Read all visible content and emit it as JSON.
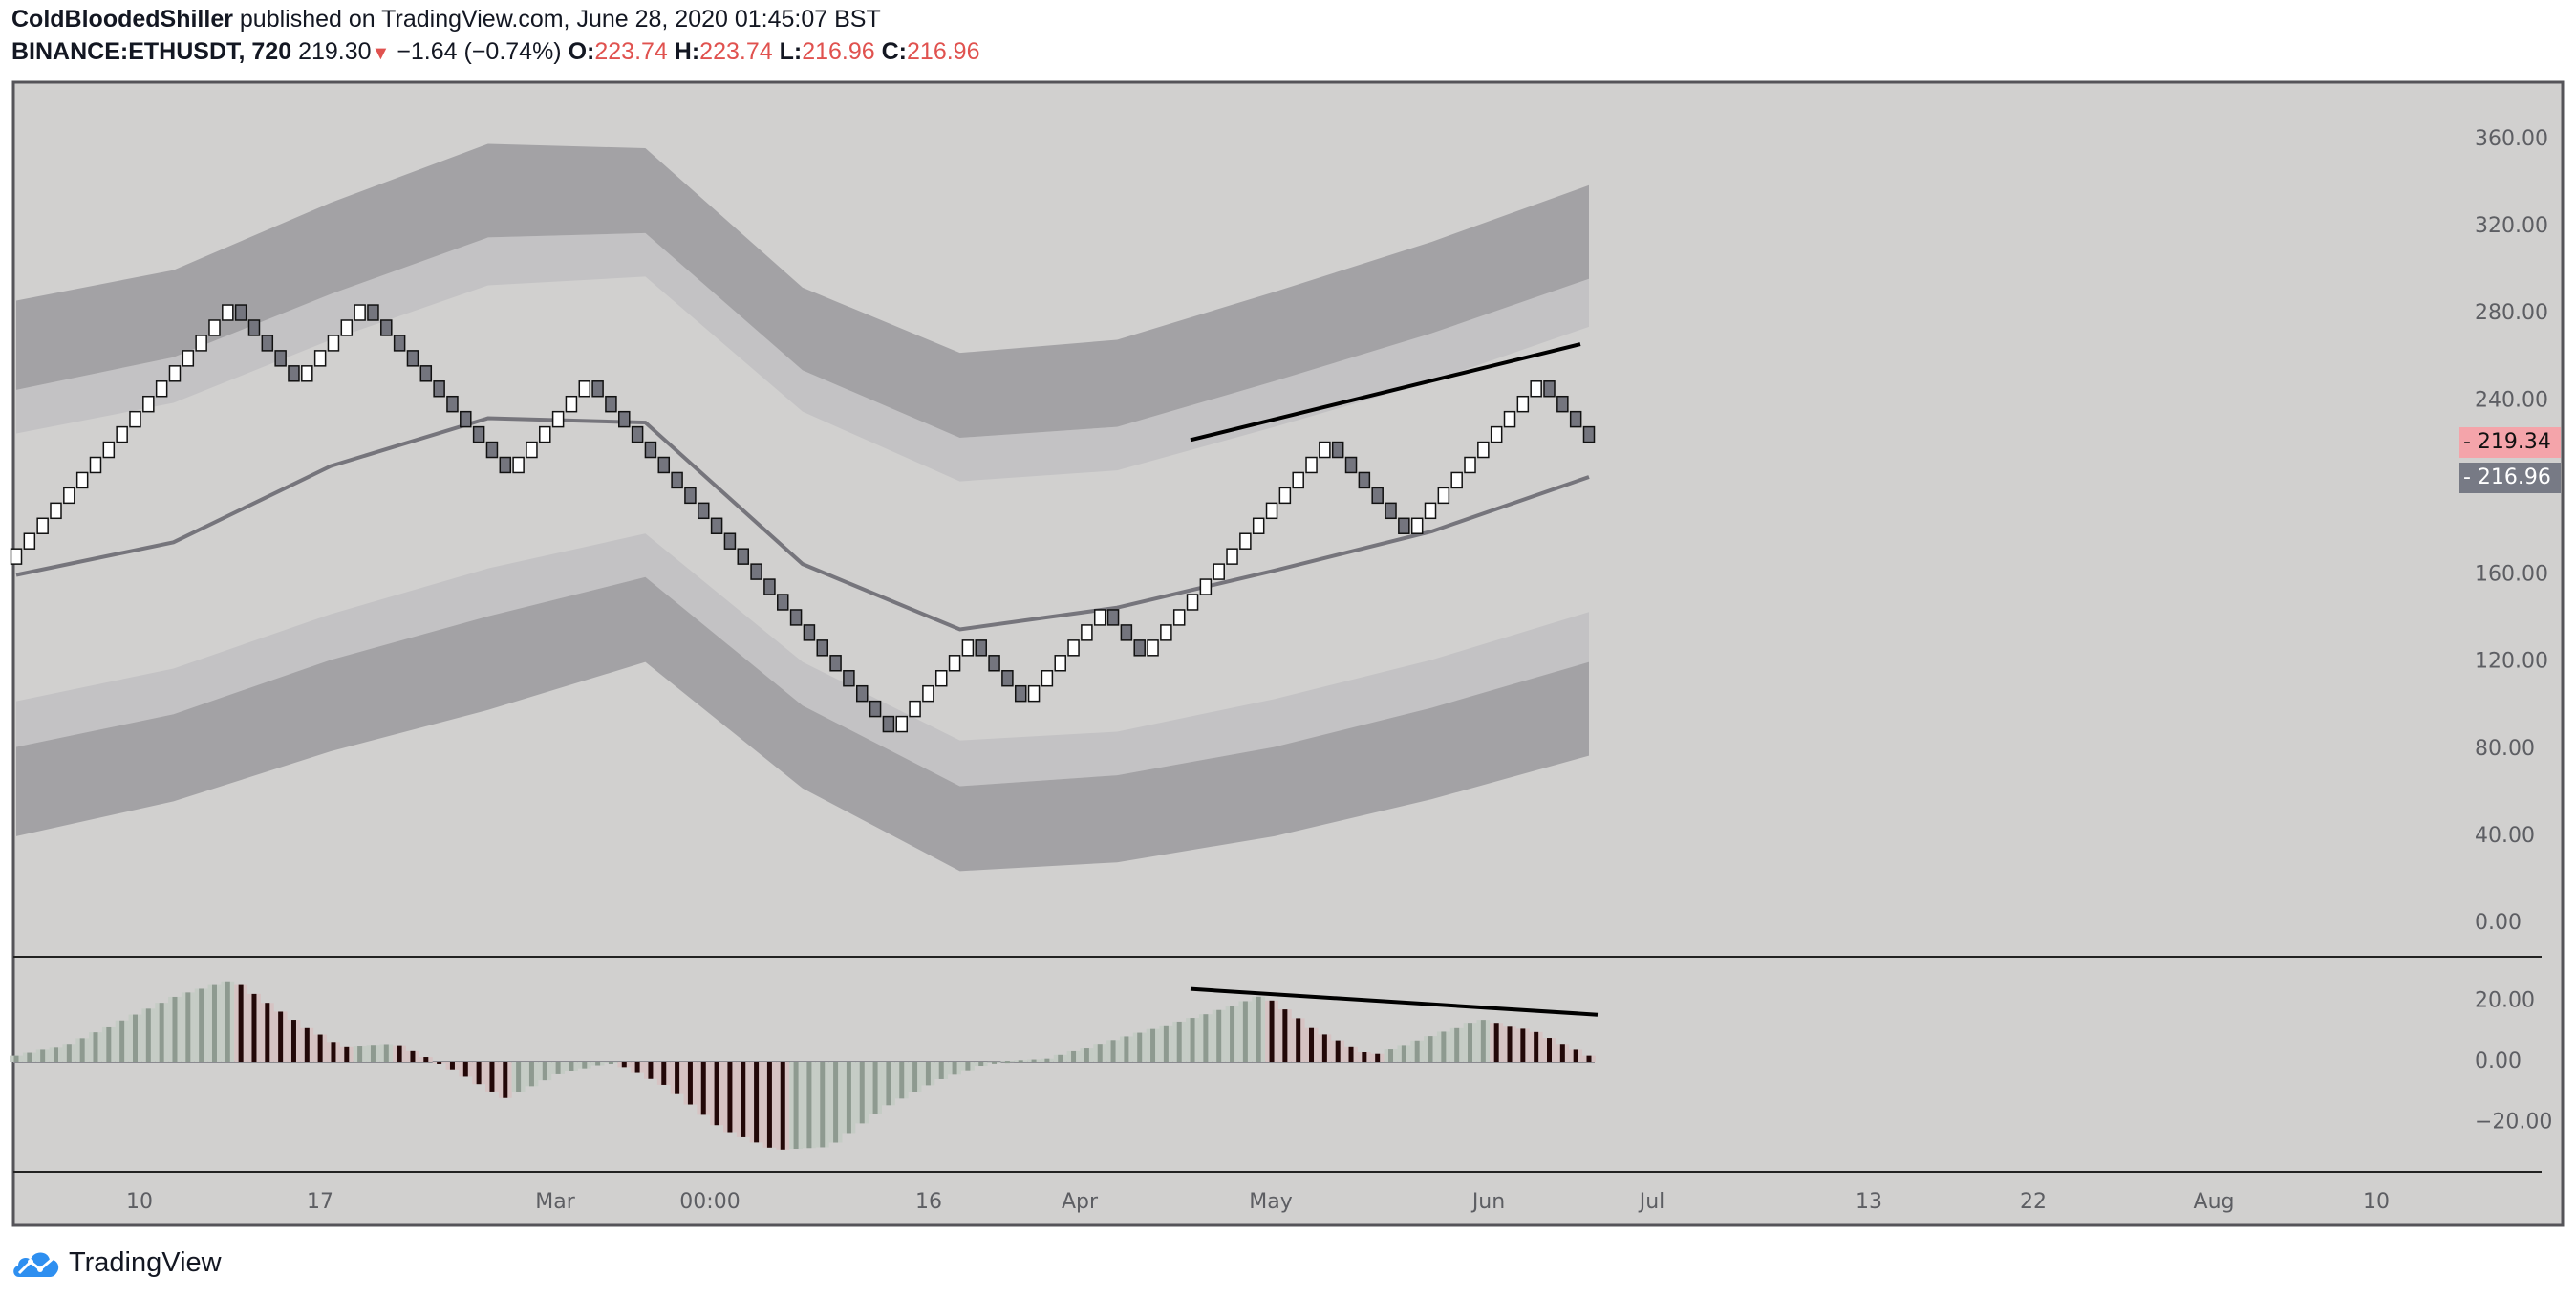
{
  "header": {
    "author": "ColdBloodedShiller",
    "published": "published on TradingView.com, June 28, 2020 01:45:07 BST",
    "symbol": "BINANCE:ETHUSDT, 720",
    "last": "219.30",
    "change": "−1.64 (−0.74%)",
    "o_label": "O:",
    "o": "223.74",
    "h_label": "H:",
    "h": "223.74",
    "l_label": "L:",
    "l": "216.96",
    "c_label": "C:",
    "c": "216.96"
  },
  "footer": {
    "brand": "TradingView",
    "logo_icon": "tradingview-cloud-icon",
    "logo_color": "#2e8ff0"
  },
  "colors": {
    "background": "#d1d0cf",
    "band_light": "#c3c2c4",
    "band_dark": "#a3a2a5",
    "basis": "#76757c",
    "bull_brick": "#ffffff",
    "bear_brick": "#74757e",
    "hist_up": "#8e9a90",
    "hist_down": "#230808",
    "tag_last": "#f4a4aa",
    "tag_close": "#777a85"
  },
  "chart_data": [
    {
      "type": "renko",
      "brick_size": 7,
      "start_price": 165,
      "pivots": [
        284,
        249,
        284,
        207,
        249,
        88,
        130,
        102,
        144,
        123,
        221,
        179,
        249,
        221
      ],
      "ylim": [
        0,
        380
      ],
      "y_ticks": [
        "360.00",
        "320.00",
        "280.00",
        "240.00",
        "160.00",
        "120.00",
        "80.00",
        "40.00",
        "0.00"
      ],
      "y_tick_values": [
        360,
        320,
        280,
        240,
        160,
        120,
        80,
        40,
        0
      ],
      "x_ticks": [
        "10",
        "17",
        "Mar",
        "00:00",
        "16",
        "Apr",
        "May",
        "Jun",
        "Jul",
        "13",
        "22",
        "Aug",
        "10"
      ],
      "price_tags": [
        {
          "label": "219.34",
          "value": 219.34
        },
        {
          "label": "216.96",
          "value": 216.96
        }
      ],
      "bands": {
        "upper_outer": [
          286,
          300,
          331,
          358,
          356,
          292,
          262,
          268,
          290,
          313,
          339
        ],
        "upper_mid": [
          245,
          260,
          289,
          315,
          317,
          254,
          223,
          228,
          249,
          271,
          296
        ],
        "upper_inner": [
          225,
          239,
          268,
          293,
          297,
          235,
          203,
          208,
          228,
          249,
          274
        ],
        "lower_inner": [
          102,
          117,
          142,
          163,
          179,
          120,
          84,
          88,
          103,
          121,
          143
        ],
        "lower_mid": [
          81,
          96,
          121,
          141,
          159,
          100,
          63,
          68,
          81,
          99,
          120
        ],
        "lower_outer": [
          40,
          56,
          79,
          98,
          120,
          62,
          24,
          28,
          40,
          57,
          77
        ],
        "basis": [
          160,
          175,
          210,
          232,
          230,
          165,
          135,
          145,
          162,
          180,
          205
        ]
      },
      "trendline": {
        "from": 222,
        "to": 266
      }
    },
    {
      "type": "histogram",
      "ylim": [
        -35,
        30
      ],
      "y_ticks": [
        "20.00",
        "0.00",
        "−20.00"
      ],
      "y_tick_values": [
        20,
        0,
        -20
      ],
      "values": [
        2,
        6,
        14,
        22,
        27,
        15,
        5,
        6,
        -2,
        -12,
        -4,
        0,
        -8,
        -22,
        -29,
        -28,
        -15,
        -6,
        0,
        1,
        6,
        11,
        16,
        22,
        10,
        2,
        8,
        14,
        10,
        2
      ],
      "trendline": {
        "from": 24,
        "to": 15.5
      }
    }
  ]
}
